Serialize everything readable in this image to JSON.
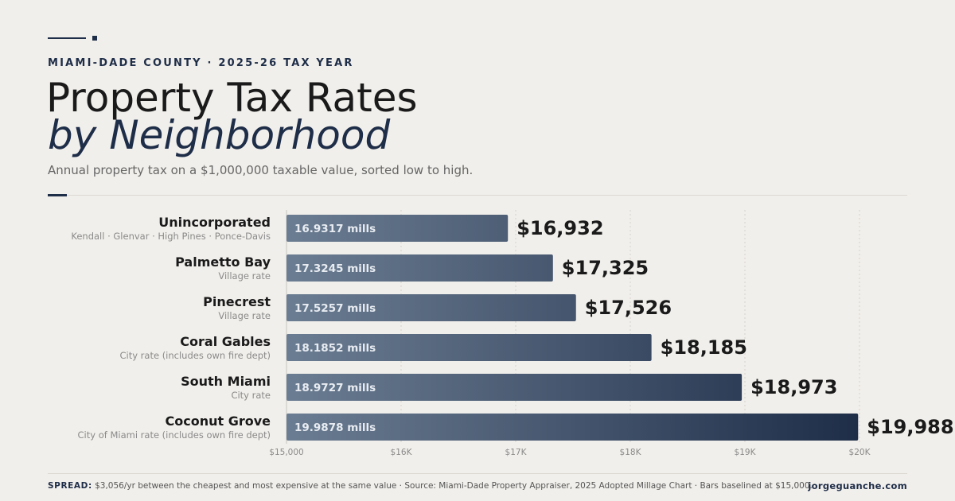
{
  "header": {
    "eyebrow": "MIAMI-DADE COUNTY · 2025-26 TAX YEAR",
    "title_line1": "Property Tax Rates",
    "title_line2": "by Neighborhood",
    "subtitle": "Annual property tax on a $1,000,000 taxable value, sorted low to high."
  },
  "chart_data": {
    "type": "bar",
    "orientation": "horizontal",
    "categories": [
      "Unincorporated",
      "Palmetto Bay",
      "Pinecrest",
      "Coral Gables",
      "South Miami",
      "Coconut Grove"
    ],
    "category_notes": [
      "Kendall · Glenvar · High Pines · Ponce-Davis",
      "Village rate",
      "Village rate",
      "City rate (includes own fire dept)",
      "City rate",
      "City of Miami rate (includes own fire dept)"
    ],
    "values": [
      16932,
      17325,
      17526,
      18185,
      18973,
      19988
    ],
    "value_labels": [
      "$16,932",
      "$17,325",
      "$17,526",
      "$18,185",
      "$18,973",
      "$19,988"
    ],
    "millage_labels": [
      "16.9317 mills",
      "17.3245 mills",
      "17.5257 mills",
      "18.1852 mills",
      "18.9727 mills",
      "19.9878 mills"
    ],
    "xlim": [
      15000,
      20000
    ],
    "xticks": [
      15000,
      16000,
      17000,
      18000,
      19000,
      20000
    ],
    "xtick_labels": [
      "$15,000",
      "$16K",
      "$17K",
      "$18K",
      "$19K",
      "$20K"
    ],
    "grid": true,
    "colors": {
      "bar_start": "#6b7d92",
      "bar_end": "#1e2d48",
      "value_text": "#1a1a1a",
      "inner_text": "#e8ecf2"
    }
  },
  "footer": {
    "spread_label": "SPREAD:",
    "spread_text": "$3,056/yr between the cheapest and most expensive at the same value · Source: Miami-Dade Property Appraiser, 2025 Adopted Millage Chart · Bars baselined at $15,000.",
    "site": "jorgeguanche.com"
  }
}
